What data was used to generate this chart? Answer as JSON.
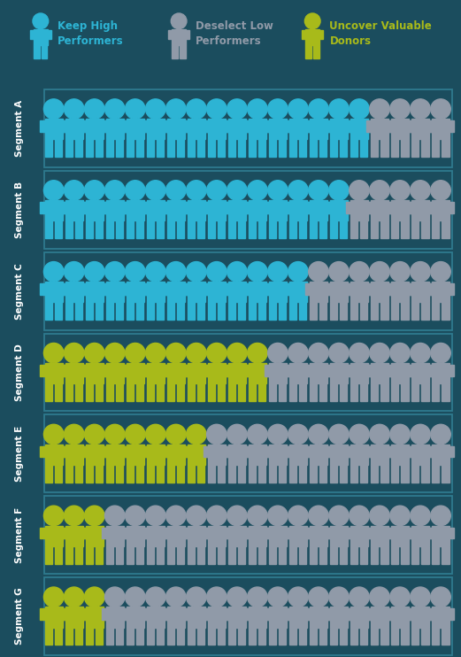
{
  "background_color": "#1b4d5e",
  "border_color": "#2e7a8e",
  "blue_color": "#2db4d4",
  "gray_color": "#909aa8",
  "green_color": "#a8ba1a",
  "text_color": "#ffffff",
  "legend_blue_label": "Keep High\nPerformers",
  "legend_gray_label": "Deselect Low\nPerformers",
  "legend_green_label": "Uncover Valuable\nDonors",
  "segments": [
    "Segment A",
    "Segment B",
    "Segment C",
    "Segment D",
    "Segment E",
    "Segment F",
    "Segment G"
  ],
  "segment_data": [
    {
      "blue": 16,
      "green": 0,
      "gray": 4
    },
    {
      "blue": 15,
      "green": 0,
      "gray": 5
    },
    {
      "blue": 13,
      "green": 0,
      "gray": 7
    },
    {
      "blue": 0,
      "green": 11,
      "gray": 9
    },
    {
      "blue": 0,
      "green": 8,
      "gray": 12
    },
    {
      "blue": 0,
      "green": 3,
      "gray": 17
    },
    {
      "blue": 0,
      "green": 3,
      "gray": 17
    }
  ],
  "figures_per_row": 20,
  "figsize": [
    5.21,
    7.42
  ],
  "dpi": 100
}
